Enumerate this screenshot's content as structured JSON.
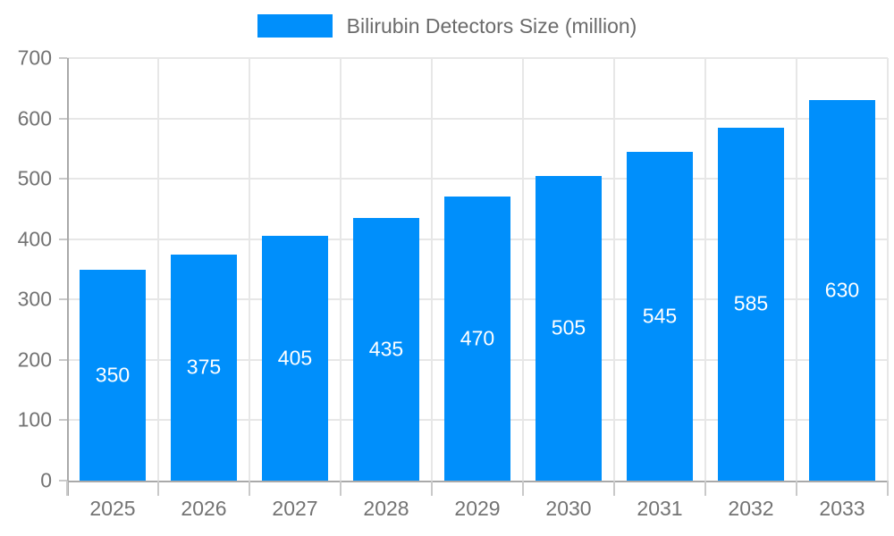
{
  "legend": {
    "label": "Bilirubin Detectors Size (million)"
  },
  "colors": {
    "bar": "#008FFB",
    "bar_label": "#ffffff",
    "grid": "#e7e7e7",
    "axis": "#a9a9a9",
    "tick": "#c9c9c9",
    "axis_label": "#737373",
    "legend_text": "#6b6b6b",
    "background": "#ffffff"
  },
  "chart_data": {
    "type": "bar",
    "title": "Bilirubin Detectors Size (million)",
    "categories": [
      "2025",
      "2026",
      "2027",
      "2028",
      "2029",
      "2030",
      "2031",
      "2032",
      "2033"
    ],
    "values": [
      350,
      375,
      405,
      435,
      470,
      505,
      545,
      585,
      630
    ],
    "bar_labels": [
      "350",
      "375",
      "405",
      "435",
      "470",
      "505",
      "545",
      "585",
      "630"
    ],
    "xlabel": "",
    "ylabel": "",
    "ylim": [
      0,
      700
    ],
    "yticks": [
      0,
      100,
      200,
      300,
      400,
      500,
      600,
      700
    ],
    "grid": true,
    "legend_position": "top",
    "bar_width_fraction": 0.72
  }
}
